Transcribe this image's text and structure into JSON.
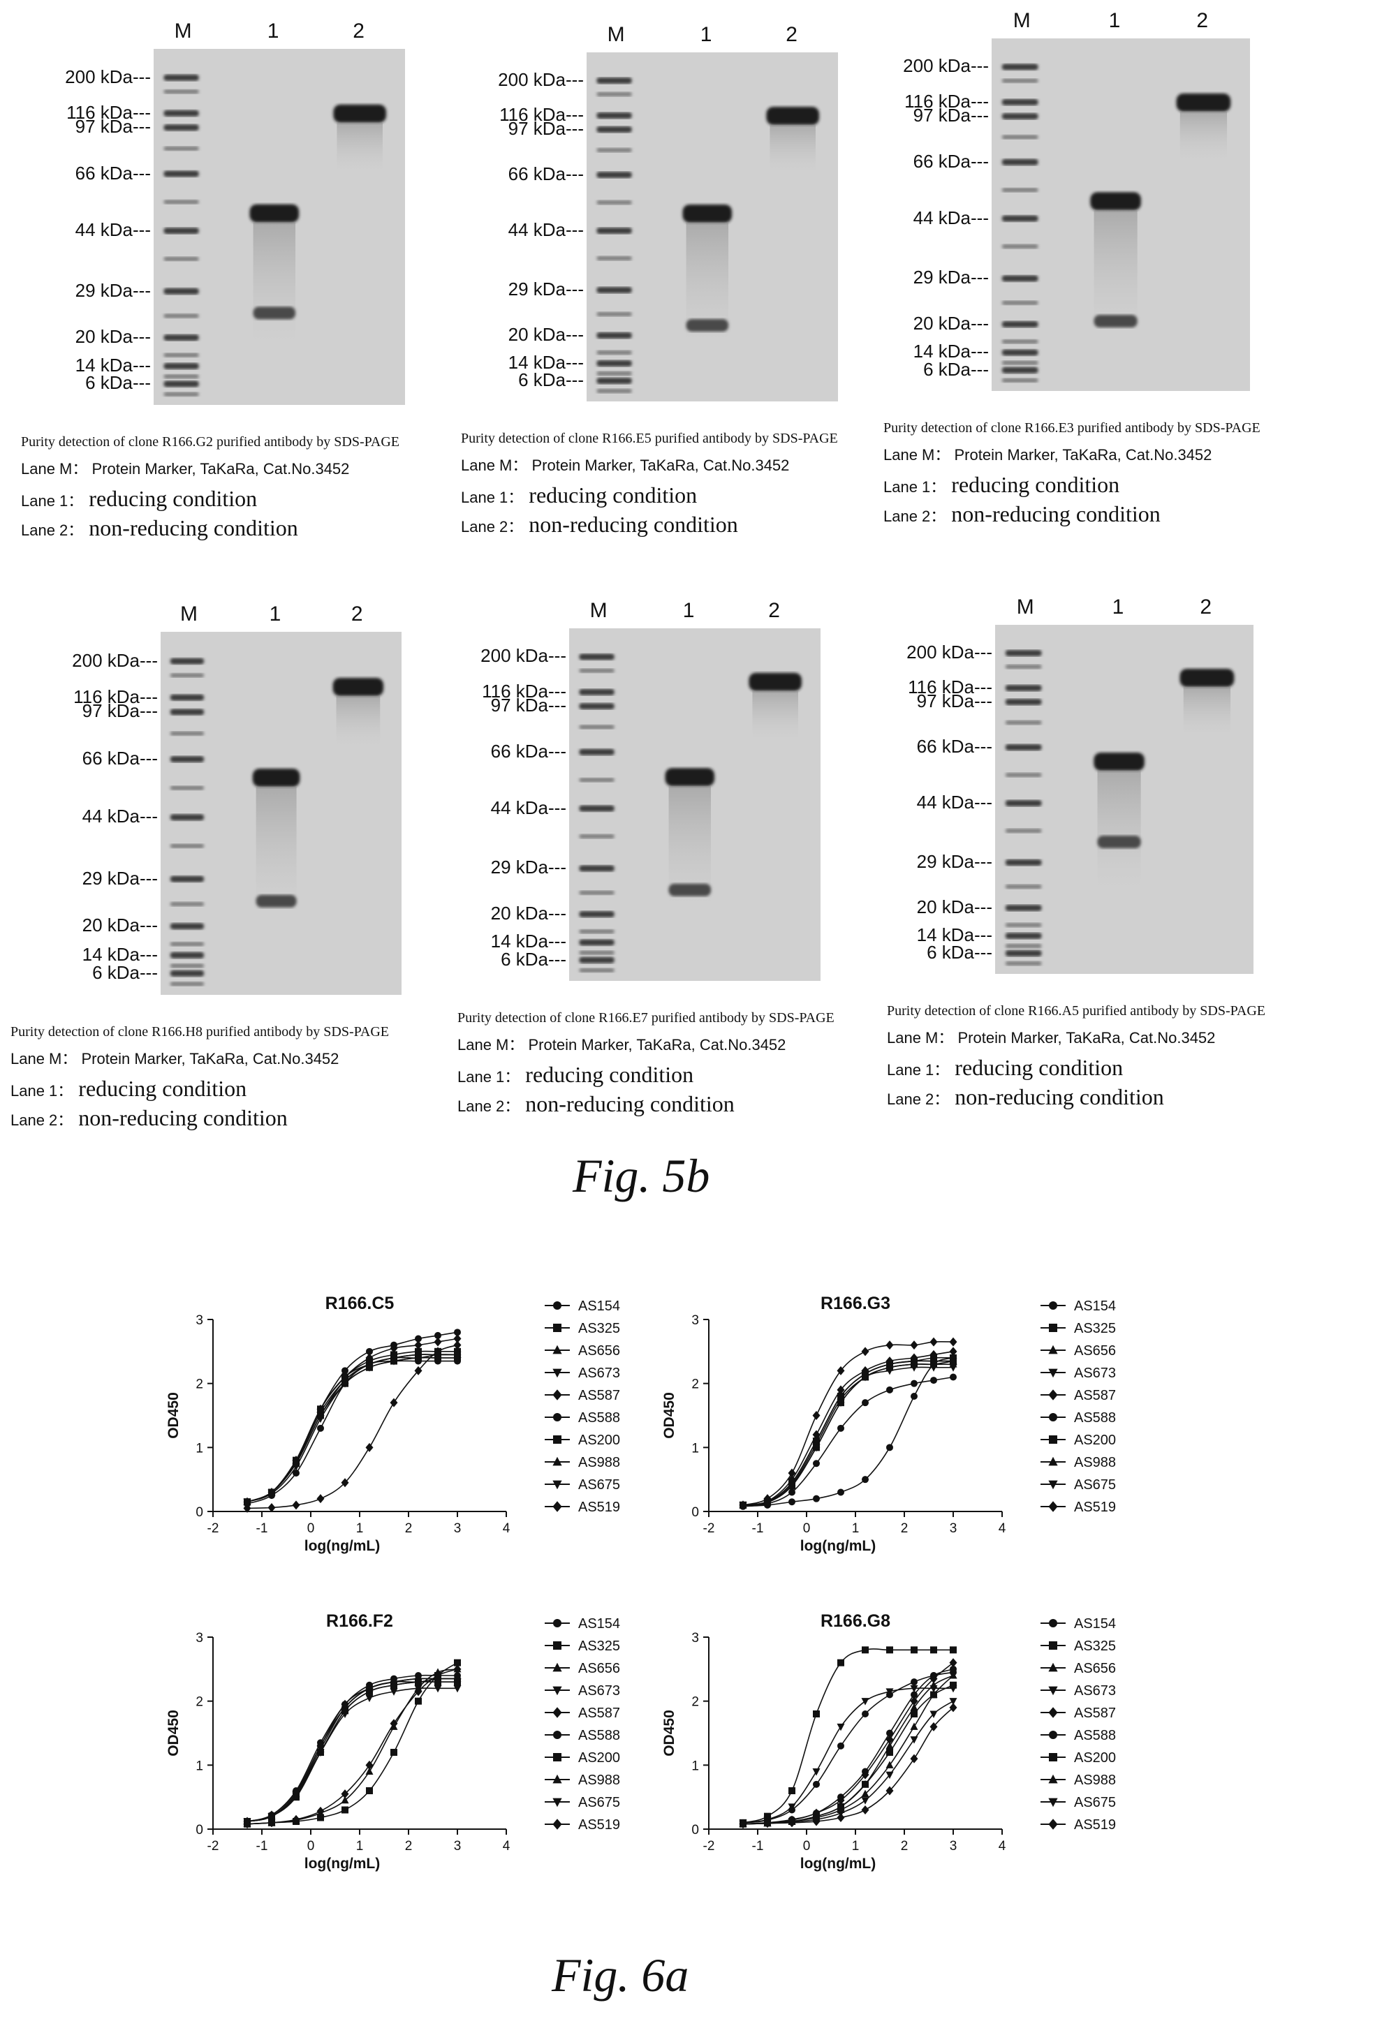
{
  "fig5b": {
    "label": "Fig. 5b",
    "lane_headers": [
      "M",
      "1",
      "2"
    ],
    "marker_labels": [
      "200 kDa---",
      "116 kDa---",
      "97 kDa---",
      "66 kDa---",
      "44 kDa---",
      "29 kDa---",
      "20 kDa---",
      "14 kDa---",
      "6 kDa---"
    ],
    "caption_lane_m_key": "Lane M：",
    "caption_lane_m_value": "Protein Marker, TaKaRa, Cat.No.3452",
    "caption_lane_1_key": "Lane 1：",
    "caption_lane_1_value": "reducing condition",
    "caption_lane_2_key": "Lane 2：",
    "caption_lane_2_value": "non-reducing condition",
    "panels": [
      {
        "title": "Purity detection of clone R166.G2 purified antibody by SDS-PAGE"
      },
      {
        "title": "Purity detection of clone R166.E5 purified antibody by SDS-PAGE"
      },
      {
        "title": "Purity detection of clone R166.E3 purified antibody by SDS-PAGE"
      },
      {
        "title": "Purity detection of clone R166.H8 purified antibody by SDS-PAGE"
      },
      {
        "title": "Purity detection of clone R166.E7 purified antibody by SDS-PAGE"
      },
      {
        "title": "Purity detection of clone R166.A5 purified antibody by SDS-PAGE"
      }
    ]
  },
  "fig6a": {
    "label": "Fig. 6a"
  },
  "chart_data": [
    {
      "type": "scatter",
      "title": "R166.C5",
      "xlabel": "log(ng/mL)",
      "ylabel": "OD450",
      "xlim": [
        -2,
        4
      ],
      "ylim": [
        0,
        3
      ],
      "xticks": [
        "-2",
        "-1",
        "0",
        "1",
        "2",
        "3",
        "4"
      ],
      "yticks": [
        "0",
        "1",
        "2",
        "3"
      ],
      "x": [
        -1.3,
        -0.8,
        -0.3,
        0.2,
        0.7,
        1.2,
        1.7,
        2.2,
        2.6,
        3.0
      ],
      "legend_position": "right",
      "series": [
        {
          "name": "AS154",
          "marker": "circle",
          "values": [
            0.15,
            0.3,
            0.8,
            1.6,
            2.2,
            2.5,
            2.6,
            2.7,
            2.75,
            2.8
          ]
        },
        {
          "name": "AS325",
          "marker": "square",
          "values": [
            0.15,
            0.3,
            0.75,
            1.5,
            2.0,
            2.25,
            2.35,
            2.4,
            2.4,
            2.4
          ]
        },
        {
          "name": "AS656",
          "marker": "triangle-up",
          "values": [
            0.15,
            0.3,
            0.8,
            1.6,
            2.1,
            2.3,
            2.4,
            2.45,
            2.45,
            2.45
          ]
        },
        {
          "name": "AS673",
          "marker": "triangle-down",
          "values": [
            0.15,
            0.3,
            0.75,
            1.5,
            2.05,
            2.3,
            2.4,
            2.4,
            2.45,
            2.45
          ]
        },
        {
          "name": "AS587",
          "marker": "diamond",
          "values": [
            0.05,
            0.06,
            0.1,
            0.2,
            0.45,
            1.0,
            1.7,
            2.2,
            2.5,
            2.6
          ]
        },
        {
          "name": "AS588",
          "marker": "circle",
          "values": [
            0.12,
            0.25,
            0.6,
            1.3,
            2.0,
            2.3,
            2.35,
            2.35,
            2.35,
            2.35
          ]
        },
        {
          "name": "AS200",
          "marker": "square",
          "values": [
            0.15,
            0.3,
            0.8,
            1.6,
            2.1,
            2.35,
            2.45,
            2.5,
            2.5,
            2.5
          ]
        },
        {
          "name": "AS988",
          "marker": "triangle-up",
          "values": [
            0.15,
            0.3,
            0.78,
            1.55,
            2.05,
            2.3,
            2.4,
            2.45,
            2.45,
            2.45
          ]
        },
        {
          "name": "AS675",
          "marker": "triangle-down",
          "values": [
            0.15,
            0.28,
            0.7,
            1.45,
            2.0,
            2.25,
            2.35,
            2.4,
            2.4,
            2.4
          ]
        },
        {
          "name": "AS519",
          "marker": "diamond",
          "values": [
            0.15,
            0.3,
            0.8,
            1.6,
            2.1,
            2.4,
            2.55,
            2.6,
            2.65,
            2.7
          ]
        }
      ]
    },
    {
      "type": "scatter",
      "title": "R166.G3",
      "xlabel": "log(ng/mL)",
      "ylabel": "OD450",
      "xlim": [
        -2,
        4
      ],
      "ylim": [
        0,
        3
      ],
      "xticks": [
        "-2",
        "-1",
        "0",
        "1",
        "2",
        "3",
        "4"
      ],
      "yticks": [
        "0",
        "1",
        "2",
        "3"
      ],
      "x": [
        -1.3,
        -0.8,
        -0.3,
        0.2,
        0.7,
        1.2,
        1.7,
        2.2,
        2.6,
        3.0
      ],
      "legend_position": "right",
      "series": [
        {
          "name": "AS154",
          "marker": "circle",
          "values": [
            0.08,
            0.1,
            0.15,
            0.2,
            0.3,
            0.5,
            1.0,
            1.8,
            2.3,
            2.4
          ]
        },
        {
          "name": "AS325",
          "marker": "square",
          "values": [
            0.1,
            0.15,
            0.4,
            1.0,
            1.7,
            2.1,
            2.25,
            2.3,
            2.3,
            2.35
          ]
        },
        {
          "name": "AS656",
          "marker": "triangle-up",
          "values": [
            0.1,
            0.15,
            0.45,
            1.1,
            1.8,
            2.15,
            2.3,
            2.35,
            2.35,
            2.35
          ]
        },
        {
          "name": "AS673",
          "marker": "triangle-down",
          "values": [
            0.1,
            0.14,
            0.4,
            1.0,
            1.7,
            2.1,
            2.2,
            2.25,
            2.25,
            2.25
          ]
        },
        {
          "name": "AS587",
          "marker": "diamond",
          "values": [
            0.1,
            0.2,
            0.6,
            1.5,
            2.2,
            2.5,
            2.6,
            2.6,
            2.65,
            2.65
          ]
        },
        {
          "name": "AS588",
          "marker": "circle",
          "values": [
            0.08,
            0.12,
            0.3,
            0.75,
            1.3,
            1.7,
            1.9,
            2.0,
            2.05,
            2.1
          ]
        },
        {
          "name": "AS200",
          "marker": "square",
          "values": [
            0.1,
            0.15,
            0.45,
            1.1,
            1.8,
            2.15,
            2.3,
            2.35,
            2.4,
            2.4
          ]
        },
        {
          "name": "AS988",
          "marker": "triangle-up",
          "values": [
            0.1,
            0.14,
            0.42,
            1.05,
            1.75,
            2.1,
            2.25,
            2.3,
            2.3,
            2.3
          ]
        },
        {
          "name": "AS675",
          "marker": "triangle-down",
          "values": [
            0.1,
            0.15,
            0.45,
            1.1,
            1.8,
            2.15,
            2.3,
            2.35,
            2.35,
            2.35
          ]
        },
        {
          "name": "AS519",
          "marker": "diamond",
          "values": [
            0.1,
            0.16,
            0.5,
            1.2,
            1.9,
            2.2,
            2.35,
            2.4,
            2.45,
            2.5
          ]
        }
      ]
    },
    {
      "type": "scatter",
      "title": "R166.F2",
      "xlabel": "log(ng/mL)",
      "ylabel": "OD450",
      "xlim": [
        -2,
        4
      ],
      "ylim": [
        0,
        3
      ],
      "xticks": [
        "-2",
        "-1",
        "0",
        "1",
        "2",
        "3",
        "4"
      ],
      "yticks": [
        "0",
        "1",
        "2",
        "3"
      ],
      "x": [
        -1.3,
        -0.8,
        -0.3,
        0.2,
        0.7,
        1.2,
        1.7,
        2.2,
        2.6,
        3.0
      ],
      "legend_position": "right",
      "series": [
        {
          "name": "AS154",
          "marker": "circle",
          "values": [
            0.12,
            0.2,
            0.55,
            1.3,
            1.9,
            2.2,
            2.3,
            2.3,
            2.35,
            2.35
          ]
        },
        {
          "name": "AS325",
          "marker": "square",
          "values": [
            0.08,
            0.1,
            0.12,
            0.18,
            0.3,
            0.6,
            1.2,
            2.0,
            2.4,
            2.6
          ]
        },
        {
          "name": "AS656",
          "marker": "triangle-up",
          "values": [
            0.08,
            0.1,
            0.14,
            0.25,
            0.45,
            0.9,
            1.6,
            2.2,
            2.45,
            2.5
          ]
        },
        {
          "name": "AS673",
          "marker": "triangle-down",
          "values": [
            0.12,
            0.2,
            0.55,
            1.2,
            1.8,
            2.05,
            2.15,
            2.2,
            2.2,
            2.2
          ]
        },
        {
          "name": "AS587",
          "marker": "diamond",
          "values": [
            0.08,
            0.1,
            0.15,
            0.28,
            0.55,
            1.0,
            1.65,
            2.15,
            2.4,
            2.5
          ]
        },
        {
          "name": "AS588",
          "marker": "circle",
          "values": [
            0.12,
            0.22,
            0.6,
            1.35,
            1.95,
            2.25,
            2.35,
            2.4,
            2.4,
            2.4
          ]
        },
        {
          "name": "AS200",
          "marker": "square",
          "values": [
            0.12,
            0.2,
            0.5,
            1.2,
            1.85,
            2.15,
            2.25,
            2.3,
            2.3,
            2.3
          ]
        },
        {
          "name": "AS988",
          "marker": "triangle-up",
          "values": [
            0.12,
            0.2,
            0.55,
            1.25,
            1.9,
            2.2,
            2.3,
            2.35,
            2.35,
            2.35
          ]
        },
        {
          "name": "AS675",
          "marker": "triangle-down",
          "values": [
            0.12,
            0.2,
            0.52,
            1.2,
            1.85,
            2.15,
            2.25,
            2.3,
            2.3,
            2.3
          ]
        },
        {
          "name": "AS519",
          "marker": "diamond",
          "values": [
            0.12,
            0.22,
            0.58,
            1.3,
            1.95,
            2.2,
            2.3,
            2.35,
            2.35,
            2.35
          ]
        }
      ]
    },
    {
      "type": "scatter",
      "title": "R166.G8",
      "xlabel": "log(ng/mL)",
      "ylabel": "OD450",
      "xlim": [
        -2,
        4
      ],
      "ylim": [
        0,
        3
      ],
      "xticks": [
        "-2",
        "-1",
        "0",
        "1",
        "2",
        "3",
        "4"
      ],
      "yticks": [
        "0",
        "1",
        "2",
        "3"
      ],
      "x": [
        -1.3,
        -0.8,
        -0.3,
        0.2,
        0.7,
        1.2,
        1.7,
        2.2,
        2.6,
        3.0
      ],
      "legend_position": "right",
      "series": [
        {
          "name": "AS154",
          "marker": "circle",
          "values": [
            0.08,
            0.1,
            0.15,
            0.25,
            0.5,
            0.9,
            1.5,
            2.1,
            2.4,
            2.5
          ]
        },
        {
          "name": "AS325",
          "marker": "square",
          "values": [
            0.1,
            0.2,
            0.6,
            1.8,
            2.6,
            2.8,
            2.8,
            2.8,
            2.8,
            2.8
          ]
        },
        {
          "name": "AS656",
          "marker": "triangle-up",
          "values": [
            0.08,
            0.09,
            0.12,
            0.18,
            0.3,
            0.55,
            1.0,
            1.6,
            2.1,
            2.4
          ]
        },
        {
          "name": "AS673",
          "marker": "triangle-down",
          "values": [
            0.1,
            0.15,
            0.35,
            0.9,
            1.6,
            2.0,
            2.15,
            2.2,
            2.2,
            2.2
          ]
        },
        {
          "name": "AS587",
          "marker": "diamond",
          "values": [
            0.08,
            0.09,
            0.1,
            0.12,
            0.18,
            0.3,
            0.6,
            1.1,
            1.6,
            1.9
          ]
        },
        {
          "name": "AS588",
          "marker": "circle",
          "values": [
            0.1,
            0.14,
            0.3,
            0.7,
            1.3,
            1.8,
            2.1,
            2.3,
            2.4,
            2.45
          ]
        },
        {
          "name": "AS200",
          "marker": "square",
          "values": [
            0.08,
            0.1,
            0.12,
            0.2,
            0.35,
            0.7,
            1.2,
            1.8,
            2.1,
            2.25
          ]
        },
        {
          "name": "AS988",
          "marker": "triangle-up",
          "values": [
            0.08,
            0.09,
            0.12,
            0.2,
            0.35,
            0.7,
            1.3,
            1.9,
            2.25,
            2.4
          ]
        },
        {
          "name": "AS675",
          "marker": "triangle-down",
          "values": [
            0.08,
            0.09,
            0.11,
            0.15,
            0.25,
            0.45,
            0.85,
            1.4,
            1.8,
            2.0
          ]
        },
        {
          "name": "AS519",
          "marker": "diamond",
          "values": [
            0.08,
            0.1,
            0.14,
            0.25,
            0.45,
            0.85,
            1.4,
            2.0,
            2.35,
            2.6
          ]
        }
      ]
    }
  ]
}
